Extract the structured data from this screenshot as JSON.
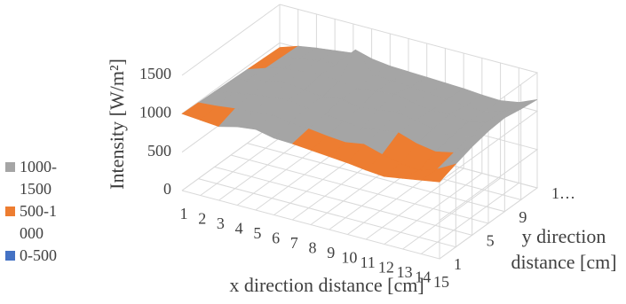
{
  "chart_data": {
    "type": "surface",
    "z_title": "Intensity [W/m²]",
    "x_title": "x direction distance [cm]",
    "y_title": "y direction distance [cm]",
    "x": [
      "1",
      "2",
      "3",
      "4",
      "5",
      "6",
      "7",
      "8",
      "9",
      "10",
      "11",
      "12",
      "13",
      "14",
      "15"
    ],
    "y_categories": [
      "1",
      null,
      "5",
      null,
      "9",
      null,
      "1…"
    ],
    "values": [
      [
        1000,
        980,
        960,
        1020,
        1050,
        1000,
        990,
        970,
        950,
        930,
        900,
        880,
        920,
        960,
        1000
      ],
      [
        990,
        1010,
        1040,
        1060,
        1080,
        1050,
        1030,
        1000,
        980,
        1020,
        950,
        900,
        870,
        950,
        1080
      ],
      [
        980,
        1030,
        1070,
        1100,
        1120,
        1090,
        1060,
        1040,
        1010,
        1050,
        1080,
        1000,
        960,
        1010,
        1150
      ],
      [
        970,
        1050,
        1090,
        1130,
        1100,
        1080,
        1110,
        1060,
        1100,
        1130,
        1090,
        1040,
        1000,
        1060,
        1200
      ],
      [
        960,
        1040,
        1100,
        1120,
        1150,
        1130,
        1090,
        1120,
        1150,
        1100,
        1060,
        1080,
        1040,
        1100,
        1220
      ],
      [
        950,
        1030,
        1080,
        1110,
        1140,
        1380,
        1120,
        1100,
        1090,
        1060,
        1050,
        1030,
        1020,
        1080,
        1180
      ],
      [
        940,
        1020,
        1060,
        1090,
        1120,
        1110,
        1080,
        1070,
        1060,
        1050,
        1040,
        1020,
        1010,
        1050,
        1150
      ]
    ],
    "zlim": [
      0,
      1500
    ],
    "zticks": [
      0,
      500,
      1000,
      1500
    ],
    "grid": true,
    "legend": [
      {
        "name": "1000-1500",
        "color": "#a5a5a5"
      },
      {
        "name": "500-1000",
        "color": "#ed7d31"
      },
      {
        "name": "0-500",
        "color": "#4472c4"
      }
    ]
  }
}
